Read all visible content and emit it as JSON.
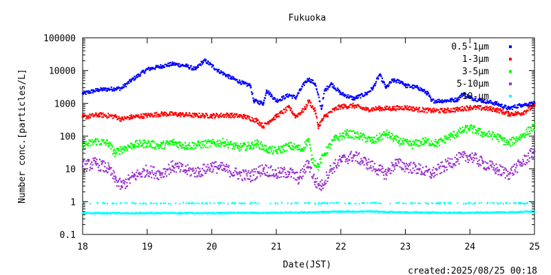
{
  "chart_data": {
    "type": "scatter",
    "title": "Fukuoka",
    "xlabel": "Date(JST)",
    "ylabel": "Number conc.[particles/L]",
    "xlim": [
      18,
      25
    ],
    "ylim": [
      0.1,
      100000
    ],
    "yscale": "log",
    "grid": false,
    "legend_position": "top-right",
    "x_ticks": [
      "18",
      "19",
      "20",
      "21",
      "22",
      "23",
      "24",
      "25"
    ],
    "y_ticks": [
      "0.1",
      "1",
      "10",
      "100",
      "1000",
      "10000",
      "100000"
    ],
    "footer": "created:2025/08/25 00:18",
    "series": [
      {
        "name": "0.5-1μm",
        "color": "#0000ff",
        "points": [
          [
            18.0,
            2000
          ],
          [
            18.25,
            2600
          ],
          [
            18.5,
            2800
          ],
          [
            18.6,
            2900
          ],
          [
            18.75,
            5000
          ],
          [
            19.0,
            11000
          ],
          [
            19.25,
            14000
          ],
          [
            19.4,
            16000
          ],
          [
            19.6,
            14000
          ],
          [
            19.75,
            11000
          ],
          [
            19.85,
            18000
          ],
          [
            19.9,
            20000
          ],
          [
            20.1,
            10000
          ],
          [
            20.3,
            6000
          ],
          [
            20.5,
            4000
          ],
          [
            20.6,
            3500
          ],
          [
            20.65,
            1200
          ],
          [
            20.8,
            1000
          ],
          [
            20.85,
            2500
          ],
          [
            21.0,
            1200
          ],
          [
            21.2,
            1800
          ],
          [
            21.3,
            1500
          ],
          [
            21.45,
            4500
          ],
          [
            21.5,
            5500
          ],
          [
            21.6,
            4000
          ],
          [
            21.7,
            700
          ],
          [
            21.75,
            2500
          ],
          [
            21.85,
            4000
          ],
          [
            22.0,
            2000
          ],
          [
            22.2,
            1400
          ],
          [
            22.4,
            2000
          ],
          [
            22.5,
            3000
          ],
          [
            22.6,
            7500
          ],
          [
            22.7,
            3000
          ],
          [
            22.8,
            5000
          ],
          [
            22.95,
            4500
          ],
          [
            23.0,
            3500
          ],
          [
            23.2,
            3000
          ],
          [
            23.35,
            2000
          ],
          [
            23.4,
            1200
          ],
          [
            23.6,
            1200
          ],
          [
            23.8,
            1300
          ],
          [
            23.9,
            2000
          ],
          [
            24.0,
            1500
          ],
          [
            24.2,
            1200
          ],
          [
            24.4,
            1000
          ],
          [
            24.6,
            700
          ],
          [
            24.8,
            900
          ],
          [
            25.0,
            1000
          ]
        ]
      },
      {
        "name": "1-3μm",
        "color": "#ff0000",
        "points": [
          [
            18.0,
            380
          ],
          [
            18.25,
            450
          ],
          [
            18.5,
            400
          ],
          [
            18.6,
            330
          ],
          [
            18.75,
            380
          ],
          [
            19.0,
            430
          ],
          [
            19.25,
            480
          ],
          [
            19.5,
            460
          ],
          [
            19.75,
            430
          ],
          [
            20.0,
            420
          ],
          [
            20.25,
            440
          ],
          [
            20.5,
            400
          ],
          [
            20.7,
            300
          ],
          [
            20.8,
            200
          ],
          [
            20.9,
            300
          ],
          [
            21.0,
            400
          ],
          [
            21.2,
            750
          ],
          [
            21.3,
            400
          ],
          [
            21.45,
            700
          ],
          [
            21.5,
            1200
          ],
          [
            21.6,
            600
          ],
          [
            21.65,
            200
          ],
          [
            21.75,
            400
          ],
          [
            21.9,
            650
          ],
          [
            22.0,
            800
          ],
          [
            22.2,
            850
          ],
          [
            22.4,
            650
          ],
          [
            22.6,
            700
          ],
          [
            22.8,
            700
          ],
          [
            23.0,
            750
          ],
          [
            23.2,
            650
          ],
          [
            23.4,
            600
          ],
          [
            23.6,
            600
          ],
          [
            23.8,
            650
          ],
          [
            24.0,
            750
          ],
          [
            24.2,
            720
          ],
          [
            24.4,
            650
          ],
          [
            24.6,
            480
          ],
          [
            24.8,
            500
          ],
          [
            25.0,
            850
          ]
        ]
      },
      {
        "name": "3-5μm",
        "color": "#00ff00",
        "points": [
          [
            18.0,
            50
          ],
          [
            18.2,
            70
          ],
          [
            18.4,
            60
          ],
          [
            18.5,
            30
          ],
          [
            18.6,
            40
          ],
          [
            18.8,
            55
          ],
          [
            19.0,
            60
          ],
          [
            19.2,
            50
          ],
          [
            19.4,
            65
          ],
          [
            19.6,
            50
          ],
          [
            19.8,
            55
          ],
          [
            20.0,
            60
          ],
          [
            20.2,
            65
          ],
          [
            20.4,
            45
          ],
          [
            20.6,
            50
          ],
          [
            20.7,
            60
          ],
          [
            20.85,
            40
          ],
          [
            21.0,
            35
          ],
          [
            21.2,
            50
          ],
          [
            21.4,
            40
          ],
          [
            21.5,
            80
          ],
          [
            21.55,
            20
          ],
          [
            21.65,
            12
          ],
          [
            21.75,
            30
          ],
          [
            21.9,
            80
          ],
          [
            22.1,
            120
          ],
          [
            22.3,
            100
          ],
          [
            22.5,
            70
          ],
          [
            22.7,
            120
          ],
          [
            22.9,
            70
          ],
          [
            23.1,
            55
          ],
          [
            23.3,
            70
          ],
          [
            23.5,
            60
          ],
          [
            23.7,
            100
          ],
          [
            23.9,
            150
          ],
          [
            24.0,
            180
          ],
          [
            24.2,
            120
          ],
          [
            24.4,
            100
          ],
          [
            24.6,
            60
          ],
          [
            24.8,
            100
          ],
          [
            25.0,
            200
          ]
        ]
      },
      {
        "name": "5-10μm",
        "color": "#9932cc",
        "points": [
          [
            18.0,
            12
          ],
          [
            18.2,
            15
          ],
          [
            18.4,
            10
          ],
          [
            18.5,
            5
          ],
          [
            18.6,
            3
          ],
          [
            18.8,
            6
          ],
          [
            19.0,
            9
          ],
          [
            19.2,
            7
          ],
          [
            19.4,
            12
          ],
          [
            19.6,
            9
          ],
          [
            19.8,
            8
          ],
          [
            20.0,
            12
          ],
          [
            20.2,
            10
          ],
          [
            20.4,
            7
          ],
          [
            20.6,
            6
          ],
          [
            20.8,
            10
          ],
          [
            21.0,
            7
          ],
          [
            21.2,
            8
          ],
          [
            21.35,
            5
          ],
          [
            21.5,
            15
          ],
          [
            21.6,
            4
          ],
          [
            21.7,
            3
          ],
          [
            21.85,
            10
          ],
          [
            22.0,
            18
          ],
          [
            22.2,
            25
          ],
          [
            22.4,
            15
          ],
          [
            22.6,
            9
          ],
          [
            22.7,
            7
          ],
          [
            22.85,
            15
          ],
          [
            23.0,
            12
          ],
          [
            23.2,
            10
          ],
          [
            23.4,
            7
          ],
          [
            23.6,
            12
          ],
          [
            23.8,
            20
          ],
          [
            24.0,
            25
          ],
          [
            24.2,
            15
          ],
          [
            24.4,
            10
          ],
          [
            24.6,
            7
          ],
          [
            24.8,
            15
          ],
          [
            25.0,
            35
          ]
        ]
      },
      {
        "name": "10-μm",
        "color": "#00ffff",
        "points": [
          [
            18.0,
            0.45
          ],
          [
            18.5,
            0.45
          ],
          [
            19.0,
            0.45
          ],
          [
            19.5,
            0.45
          ],
          [
            20.0,
            0.45
          ],
          [
            20.5,
            0.46
          ],
          [
            21.0,
            0.46
          ],
          [
            21.5,
            0.47
          ],
          [
            22.0,
            0.5
          ],
          [
            22.5,
            0.5
          ],
          [
            23.0,
            0.47
          ],
          [
            23.5,
            0.46
          ],
          [
            24.0,
            0.46
          ],
          [
            24.5,
            0.47
          ],
          [
            25.0,
            0.5
          ]
        ],
        "secondary_band": 0.9
      }
    ]
  }
}
